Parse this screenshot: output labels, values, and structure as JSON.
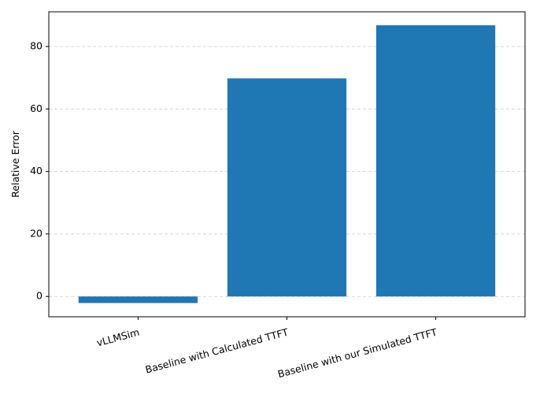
{
  "chart_data": {
    "type": "bar",
    "title": "",
    "xlabel": "",
    "ylabel": "Relative Error",
    "categories": [
      "vLLMSim",
      "Baseline with Calculated TTFT",
      "Baseline with our Simulated TTFT"
    ],
    "values": [
      -2.1,
      69.8,
      86.8
    ],
    "ylim": [
      -6.5,
      91.1
    ],
    "yticks": [
      0,
      20,
      40,
      60,
      80
    ],
    "grid": "y-dashed",
    "bar_color": "#1f77b4",
    "grid_color": "#cccccc",
    "xtick_rotation": -15
  }
}
